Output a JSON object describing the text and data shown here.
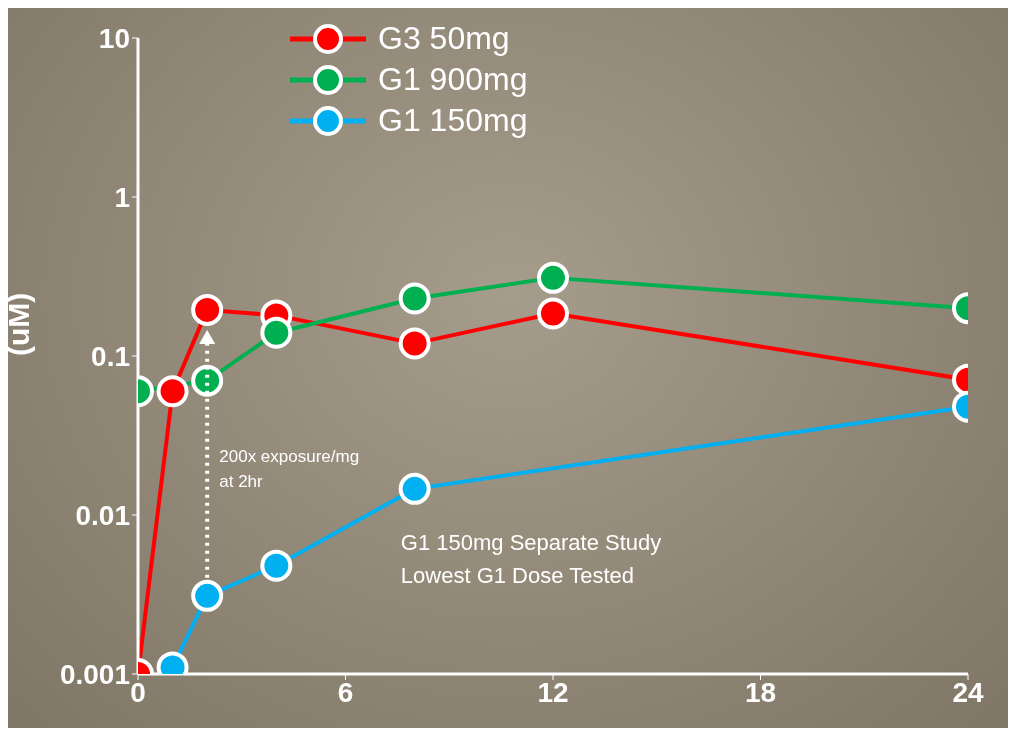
{
  "chart_data": {
    "type": "line",
    "ylabel": "(uM)",
    "log": "y",
    "xlim": [
      0,
      24
    ],
    "xticks": [
      0,
      6,
      12,
      18,
      24
    ],
    "ylim": [
      0.001,
      10
    ],
    "yticks": [
      0.001,
      0.01,
      0.1,
      1,
      10
    ],
    "legend": "top left",
    "marker": "circle",
    "line_style": "solid",
    "series": [
      {
        "name": "G3 50mg",
        "color": "#ff0000",
        "x": [
          0,
          1,
          2,
          4,
          8,
          12,
          24
        ],
        "values": [
          0.001,
          0.06,
          0.195,
          0.18,
          0.12,
          0.185,
          0.071
        ]
      },
      {
        "name": "G1 900mg",
        "color": "#00b050",
        "x": [
          0,
          2,
          4,
          8,
          12,
          24
        ],
        "values": [
          0.06,
          0.07,
          0.14,
          0.23,
          0.31,
          0.2
        ]
      },
      {
        "name": "G1 150mg",
        "color": "#00b0f0",
        "x": [
          1,
          2,
          4,
          8,
          24
        ],
        "values": [
          0.0011,
          0.0031,
          0.0048,
          0.0146,
          0.048
        ]
      }
    ],
    "annotations": [
      "200x exposure/mg at 2hr",
      "G1 150mg Separate Study Lowest G1 Dose Tested"
    ]
  }
}
